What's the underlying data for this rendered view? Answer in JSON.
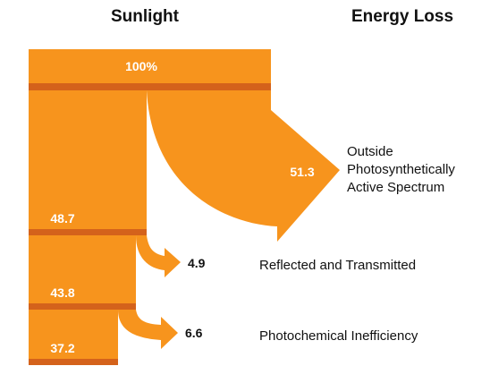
{
  "headers": {
    "sunlight": "Sunlight",
    "energy_loss": "Energy Loss"
  },
  "colors": {
    "flow": "#f7941d",
    "divider": "#d4621b",
    "text": "#111111",
    "inner_text": "#ffffff"
  },
  "sunlight_levels": {
    "start": "100%",
    "after_spectrum": "48.7",
    "after_reflection": "43.8",
    "final": "37.2"
  },
  "losses": {
    "spectrum": {
      "value": "51.3",
      "label_lines": [
        "Outside",
        "Photosynthetically",
        "Active Spectrum"
      ]
    },
    "reflection": {
      "value": "4.9",
      "label": "Reflected and Transmitted"
    },
    "photochemical": {
      "value": "6.6",
      "label": "Photochemical Inefficiency"
    }
  },
  "chart_data": {
    "type": "sankey",
    "title": "",
    "stages": [
      {
        "label": "Sunlight",
        "value": 100
      },
      {
        "value": 48.7
      },
      {
        "value": 43.8
      },
      {
        "value": 37.2
      }
    ],
    "losses": [
      {
        "label": "Outside Photosynthetically Active Spectrum",
        "value": 51.3
      },
      {
        "label": "Reflected and Transmitted",
        "value": 4.9
      },
      {
        "label": "Photochemical Inefficiency",
        "value": 6.6
      }
    ]
  }
}
